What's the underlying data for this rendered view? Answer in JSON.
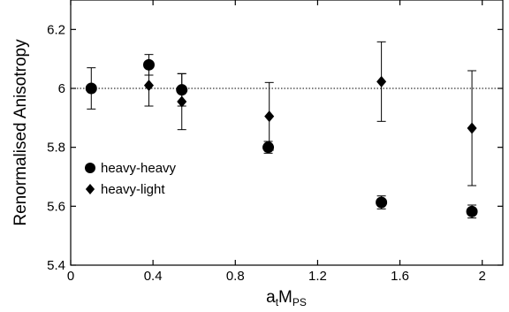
{
  "chart_data": {
    "type": "scatter",
    "xlabel": {
      "base": "a",
      "sub1": "t",
      "main": "M",
      "sub2": "PS"
    },
    "ylabel": "Renormalised Anisotropy",
    "xlim": [
      0,
      2.1
    ],
    "ylim": [
      5.4,
      6.3
    ],
    "x_ticks": [
      0,
      0.4,
      0.8,
      1.2,
      1.6,
      2
    ],
    "x_tick_labels": [
      "0",
      "0.4",
      "0.8",
      "1.2",
      "1.6",
      "2"
    ],
    "y_ticks": [
      5.4,
      5.6,
      5.8,
      6.0,
      6.2
    ],
    "y_tick_labels": [
      "5.4",
      "5.6",
      "5.8",
      "6",
      "6.2"
    ],
    "reference_line": {
      "y": 6.0,
      "style": "dotted"
    },
    "legend_position": "middle-left",
    "series": [
      {
        "name": "heavy-heavy",
        "marker": "circle",
        "points": [
          {
            "x": 0.1,
            "y": 6.0,
            "err": 0.07
          },
          {
            "x": 0.38,
            "y": 6.08,
            "err": 0.035
          },
          {
            "x": 0.54,
            "y": 5.995,
            "err": 0.055
          },
          {
            "x": 0.96,
            "y": 5.8,
            "err": 0.02
          },
          {
            "x": 1.51,
            "y": 5.613,
            "err": 0.022
          },
          {
            "x": 1.95,
            "y": 5.582,
            "err": 0.022
          }
        ]
      },
      {
        "name": "heavy-light",
        "marker": "diamond",
        "points": [
          {
            "x": 0.38,
            "y": 6.01,
            "err": 0.07
          },
          {
            "x": 0.54,
            "y": 5.955,
            "err": 0.095
          },
          {
            "x": 0.965,
            "y": 5.905,
            "err": 0.115
          },
          {
            "x": 1.51,
            "y": 6.023,
            "err": 0.135
          },
          {
            "x": 1.95,
            "y": 5.865,
            "err": 0.195
          }
        ]
      }
    ]
  }
}
